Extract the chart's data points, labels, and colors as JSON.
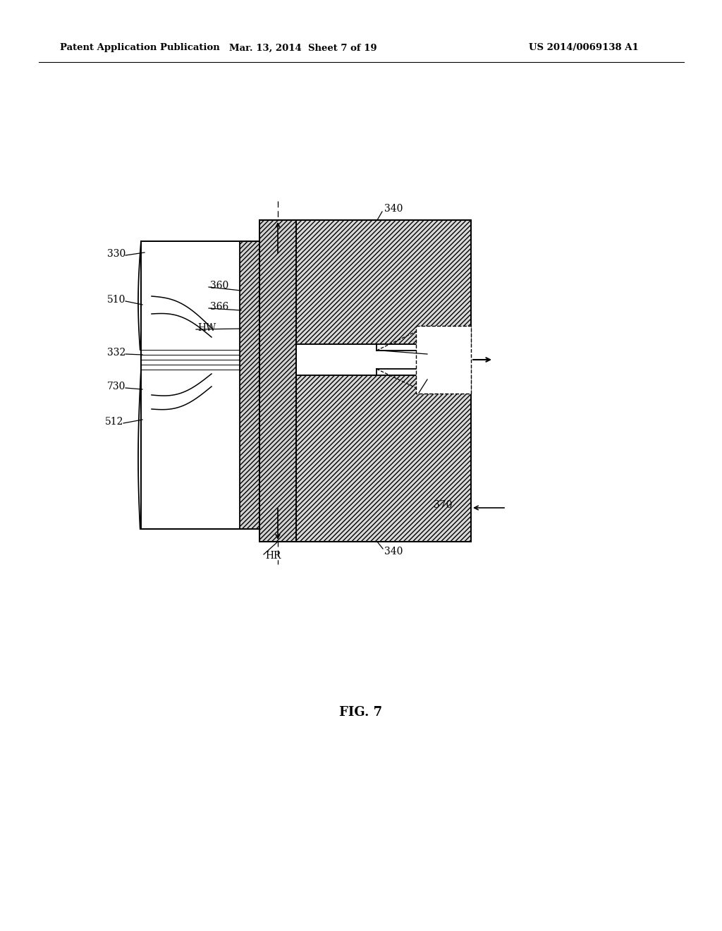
{
  "bg_color": "#ffffff",
  "line_color": "#000000",
  "header_left": "Patent Application Publication",
  "header_mid": "Mar. 13, 2014  Sheet 7 of 19",
  "header_right": "US 2014/0069138 A1",
  "fig_label": "FIG. 7"
}
